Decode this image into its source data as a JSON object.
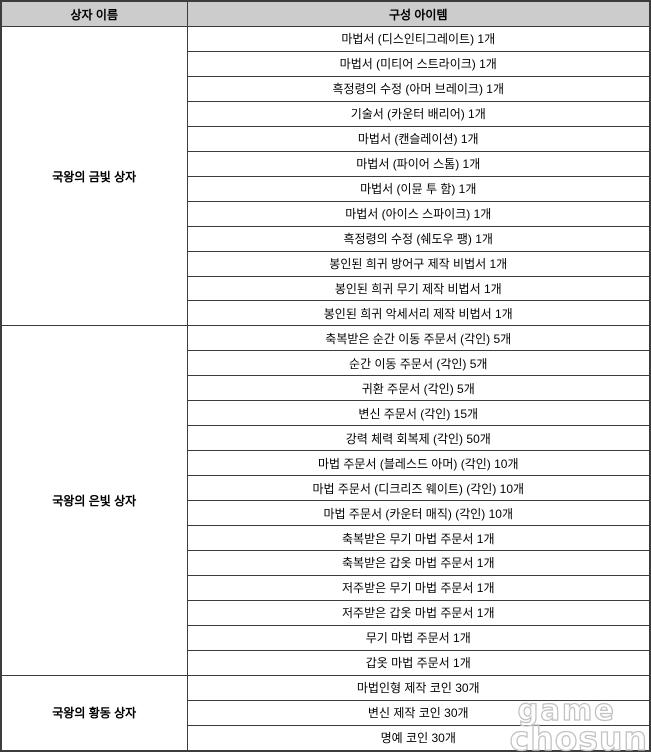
{
  "table": {
    "headers": {
      "box_name": "상자 이름",
      "items": "구성 아이템"
    },
    "groups": [
      {
        "box_name": "국왕의 금빛 상자",
        "items": [
          "마법서 (디스인티그레이트) 1개",
          "마법서 (미티어 스트라이크) 1개",
          "흑정령의 수정 (아머 브레이크) 1개",
          "기술서 (카운터 배리어) 1개",
          "마법서 (캔슬레이션) 1개",
          "마법서 (파이어 스톰) 1개",
          "마법서 (이뮨 투 함) 1개",
          "마법서 (아이스 스파이크) 1개",
          "흑정령의 수정 (쉐도우 팽) 1개",
          "봉인된 희귀 방어구 제작 비법서 1개",
          "봉인된 희귀 무기 제작 비법서 1개",
          "봉인된 희귀 악세서리 제작 비법서 1개"
        ]
      },
      {
        "box_name": "국왕의 은빛 상자",
        "items": [
          "축복받은 순간 이동 주문서 (각인) 5개",
          "순간 이동 주문서 (각인) 5개",
          "귀환 주문서 (각인) 5개",
          "변신 주문서 (각인) 15개",
          "강력 체력 회복제 (각인) 50개",
          "마법 주문서 (블레스드 아머) (각인) 10개",
          "마법 주문서 (디크리즈 웨이트) (각인) 10개",
          "마법 주문서 (카운터 매직) (각인) 10개",
          "축복받은 무기 마법 주문서 1개",
          "축복받은 갑옷 마법 주문서 1개",
          "저주받은 무기 마법 주문서 1개",
          "저주받은 갑옷 마법 주문서 1개",
          "무기 마법 주문서 1개",
          "갑옷 마법 주문서 1개"
        ]
      },
      {
        "box_name": "국왕의 황동 상자",
        "items": [
          "마법인형 제작 코인 30개",
          "변신 제작 코인 30개",
          "명예 코인 30개"
        ]
      }
    ]
  },
  "watermark": {
    "line1": "game",
    "line2": "chosun"
  },
  "colors": {
    "header_bg": "#cccccc",
    "border": "#3c3c3c",
    "text": "#000000",
    "watermark": "#c3c3c3"
  }
}
